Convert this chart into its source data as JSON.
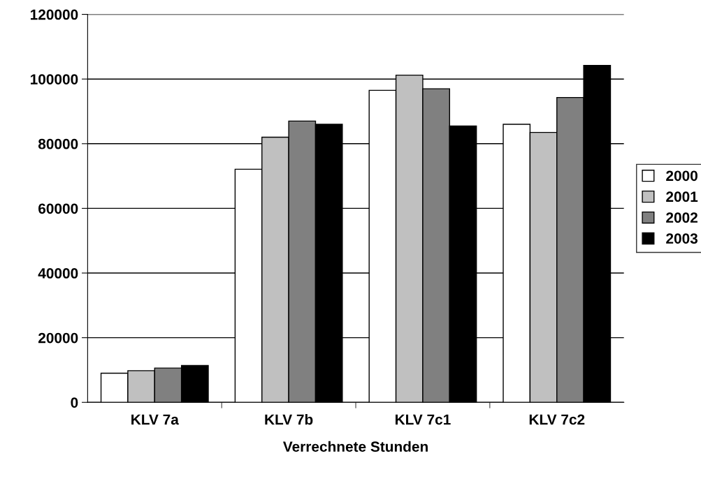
{
  "chart_data": {
    "type": "bar",
    "xlabel": "Verrechnete Stunden",
    "categories": [
      "KLV 7a",
      "KLV 7b",
      "KLV 7c1",
      "KLV 7c2"
    ],
    "series": [
      {
        "name": "2000",
        "color": "#ffffff",
        "values": [
          9000,
          72100,
          96500,
          86000
        ]
      },
      {
        "name": "2001",
        "color": "#c0c0c0",
        "values": [
          9800,
          82000,
          101200,
          83500
        ]
      },
      {
        "name": "2002",
        "color": "#808080",
        "values": [
          10600,
          87000,
          97000,
          94300
        ]
      },
      {
        "name": "2003",
        "color": "#000000",
        "values": [
          11400,
          86000,
          85500,
          104200
        ]
      }
    ],
    "ylim": [
      0,
      120000
    ],
    "yticks": [
      0,
      20000,
      40000,
      60000,
      80000,
      100000,
      120000
    ],
    "grid": "y",
    "legend": "right"
  }
}
